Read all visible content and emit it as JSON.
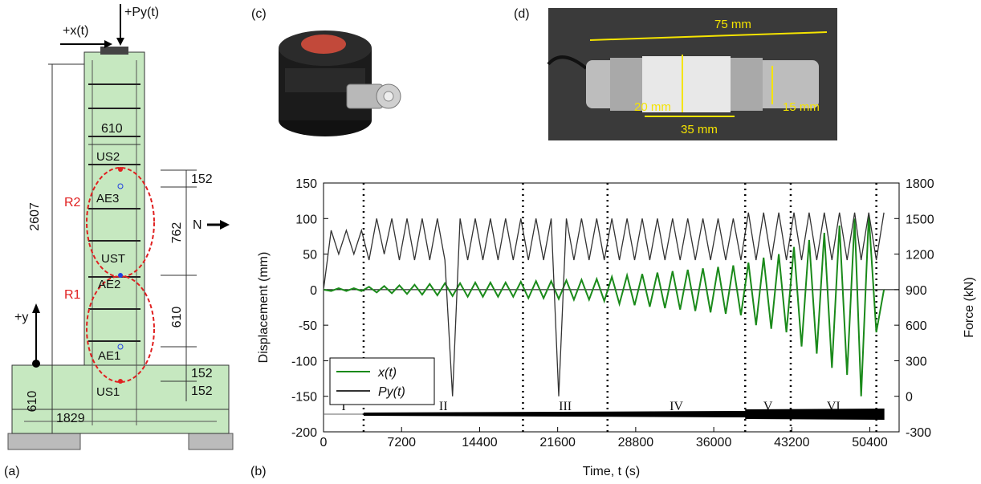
{
  "panel_labels": [
    "(a)",
    "(b)",
    "(c)",
    "(d)"
  ],
  "panel_a": {
    "labels": [
      "+x(t)",
      "+Py(t)",
      "610",
      "US2",
      "R2",
      "AE3",
      "2607",
      "152",
      "762",
      "N",
      "UST",
      "R1",
      "AE2",
      "610",
      "+y",
      "AE1",
      "152",
      "152",
      "US1",
      "610",
      "1829"
    ]
  },
  "panel_d": {
    "labels": [
      "75 mm",
      "20 mm",
      "15 mm",
      "35 mm"
    ]
  },
  "chart_data": {
    "type": "line",
    "x_label": "Time, t (s)",
    "y_label": "Displacement (mm)",
    "y2_label": "Force (kN)",
    "xlim": [
      0,
      53100
    ],
    "xticks": [
      0,
      7200,
      14400,
      21600,
      28800,
      36000,
      43200,
      50400
    ],
    "ylim": [
      -200,
      150
    ],
    "yticks": [
      -200,
      -150,
      -100,
      -50,
      0,
      50,
      100,
      150
    ],
    "y2lim": [
      -300,
      1800
    ],
    "y2ticks": [
      -300,
      0,
      300,
      600,
      900,
      1200,
      1500,
      1800
    ],
    "grid": false,
    "legend": "lower left",
    "phases": {
      "boundaries": [
        3700,
        18400,
        26200,
        38900,
        43100,
        51000
      ],
      "labels": [
        "I",
        "II",
        "III",
        "IV",
        "V",
        "VI"
      ]
    },
    "x": [
      0,
      700,
      1400,
      2100,
      2800,
      3500,
      4200,
      4900,
      5600,
      6300,
      7000,
      7700,
      8400,
      9100,
      9800,
      10500,
      11200,
      11900,
      12600,
      13300,
      14000,
      14700,
      15400,
      16100,
      16800,
      17500,
      18200,
      18900,
      19600,
      20300,
      21000,
      21700,
      22400,
      23100,
      23800,
      24500,
      25200,
      25900,
      26600,
      27300,
      28000,
      28700,
      29400,
      30100,
      30800,
      31500,
      32200,
      32900,
      33600,
      34300,
      35000,
      35700,
      36400,
      37100,
      37800,
      38500,
      39200,
      39900,
      40600,
      41300,
      42000,
      42700,
      43400,
      44100,
      44800,
      45500,
      46200,
      46900,
      47600,
      48300,
      49000,
      49600,
      50300,
      51000,
      51700
    ],
    "series": [
      {
        "name": "x(t)",
        "color": "#1a8a1a",
        "values": [
          0,
          -2,
          2,
          -2,
          2,
          -2,
          4,
          -4,
          5,
          -5,
          6,
          -6,
          7,
          -7,
          8,
          -8,
          9,
          -9,
          9,
          -10,
          10,
          -10,
          10,
          -10,
          10,
          -10,
          11,
          -12,
          12,
          -12,
          12,
          -13,
          13,
          -14,
          14,
          -14,
          15,
          -16,
          18,
          -20,
          20,
          -22,
          22,
          -24,
          24,
          -26,
          26,
          -28,
          28,
          -30,
          30,
          -32,
          32,
          -34,
          34,
          -36,
          38,
          -50,
          45,
          -55,
          50,
          -60,
          60,
          -80,
          70,
          -90,
          80,
          -110,
          90,
          -120,
          100,
          -150,
          105,
          -60,
          0
        ]
      },
      {
        "name": "Py(t)",
        "color": "#333333",
        "axis": "y2",
        "values": [
          900,
          1400,
          1200,
          1400,
          1200,
          1400,
          1150,
          1500,
          1200,
          1500,
          1150,
          1500,
          1150,
          1500,
          1150,
          1500,
          1150,
          0,
          1500,
          1150,
          1500,
          1150,
          1500,
          1150,
          1500,
          1150,
          1500,
          1150,
          1500,
          1150,
          1500,
          0,
          1500,
          1150,
          1500,
          1150,
          1500,
          1150,
          1500,
          1150,
          1500,
          1150,
          1500,
          1150,
          1500,
          1150,
          1500,
          1150,
          1500,
          1150,
          1500,
          1150,
          1500,
          1150,
          1500,
          1150,
          1550,
          1150,
          1550,
          1150,
          1550,
          1150,
          1550,
          1150,
          1550,
          1150,
          1550,
          1150,
          1550,
          1150,
          1550,
          1150,
          1550,
          1150,
          1550
        ]
      }
    ]
  }
}
